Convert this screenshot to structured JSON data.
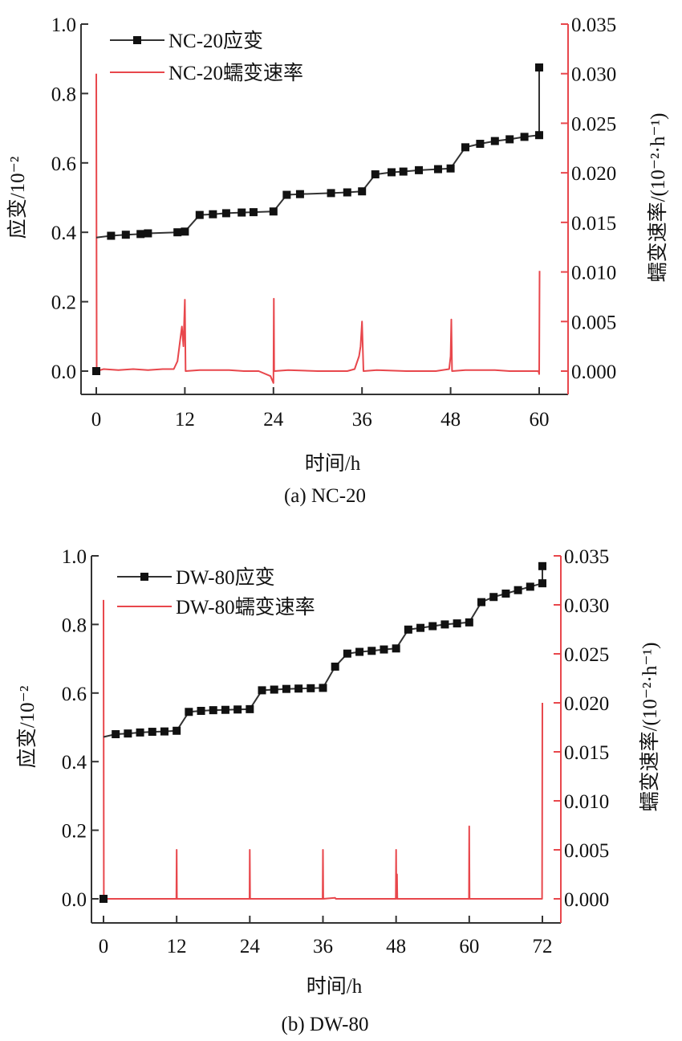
{
  "chart_data": [
    {
      "id": "a",
      "type": "line",
      "caption": "(a) NC-20",
      "xlabel": "时间/h",
      "ylabel_left": "应变/10⁻²",
      "ylabel_right": "蠕变速率/(10⁻²·h⁻¹)",
      "xlim": [
        -2,
        64
      ],
      "x_ticks": [
        "0",
        "12",
        "24",
        "36",
        "48",
        "60"
      ],
      "x_tick_values": [
        0,
        12,
        24,
        36,
        48,
        60
      ],
      "ylim_left": [
        -0.07,
        1.0
      ],
      "y_left_ticks": [
        "0.0",
        "0.2",
        "0.4",
        "0.6",
        "0.8",
        "1.0"
      ],
      "y_left_tick_values": [
        0.0,
        0.2,
        0.4,
        0.6,
        0.8,
        1.0
      ],
      "ylim_right": [
        -0.00245,
        0.035
      ],
      "y_right_ticks": [
        "0.000",
        "0.005",
        "0.010",
        "0.015",
        "0.020",
        "0.025",
        "0.030",
        "0.035"
      ],
      "y_right_tick_values": [
        0.0,
        0.005,
        0.01,
        0.015,
        0.02,
        0.025,
        0.03,
        0.035
      ],
      "legend_placement": "top-left",
      "series": [
        {
          "name": "NC-20应变",
          "axis": "left",
          "color": "#111111",
          "marker": "square",
          "points": [
            [
              0,
              0.0
            ],
            [
              0,
              0.385
            ],
            [
              2,
              0.39
            ],
            [
              4,
              0.393
            ],
            [
              6,
              0.395
            ],
            [
              7,
              0.397
            ],
            [
              11,
              0.4
            ],
            [
              12,
              0.402
            ],
            [
              14,
              0.45
            ],
            [
              15.8,
              0.452
            ],
            [
              17.6,
              0.455
            ],
            [
              19.7,
              0.457
            ],
            [
              21.3,
              0.458
            ],
            [
              24,
              0.46
            ],
            [
              25.8,
              0.508
            ],
            [
              27.6,
              0.51
            ],
            [
              31.8,
              0.513
            ],
            [
              34,
              0.515
            ],
            [
              36,
              0.518
            ],
            [
              37.8,
              0.567
            ],
            [
              40,
              0.573
            ],
            [
              41.6,
              0.575
            ],
            [
              43.7,
              0.579
            ],
            [
              46.3,
              0.582
            ],
            [
              48,
              0.584
            ],
            [
              50,
              0.645
            ],
            [
              52,
              0.655
            ],
            [
              54,
              0.663
            ],
            [
              56,
              0.668
            ],
            [
              58,
              0.675
            ],
            [
              60,
              0.68
            ],
            [
              60,
              0.875
            ]
          ]
        },
        {
          "name": "NC-20蠕变速率",
          "axis": "right",
          "color": "#e8474c",
          "points": [
            [
              0,
              0.03
            ],
            [
              0.05,
              0.0
            ],
            [
              1,
              0.0002
            ],
            [
              3,
              0.0001
            ],
            [
              5,
              0.0002
            ],
            [
              7,
              0.0001
            ],
            [
              9,
              0.0002
            ],
            [
              10.5,
              0.0002
            ],
            [
              11,
              0.001
            ],
            [
              11.6,
              0.0045
            ],
            [
              11.8,
              0.0025
            ],
            [
              12,
              0.0072
            ],
            [
              12.1,
              0.0
            ],
            [
              14,
              0.0001
            ],
            [
              18,
              0.0001
            ],
            [
              20,
              0.0
            ],
            [
              22,
              0.0
            ],
            [
              23.6,
              -0.0005
            ],
            [
              24,
              -0.0012
            ],
            [
              24.05,
              0.0073
            ],
            [
              24.1,
              0.0
            ],
            [
              26,
              0.0001
            ],
            [
              30,
              0.0
            ],
            [
              34,
              0.0
            ],
            [
              35,
              0.0002
            ],
            [
              35.6,
              0.0015
            ],
            [
              35.8,
              0.0025
            ],
            [
              36,
              0.005
            ],
            [
              36.2,
              0.0
            ],
            [
              38,
              0.0001
            ],
            [
              42,
              0.0
            ],
            [
              46,
              0.0
            ],
            [
              47.8,
              0.0002
            ],
            [
              48,
              0.0015
            ],
            [
              48.1,
              0.0052
            ],
            [
              48.2,
              0.0
            ],
            [
              50,
              0.0001
            ],
            [
              52,
              0.0001
            ],
            [
              54,
              0.0001
            ],
            [
              56,
              0.0
            ],
            [
              59.9,
              0.0
            ],
            [
              60,
              -0.0003
            ],
            [
              60.05,
              0.0101
            ]
          ]
        }
      ]
    },
    {
      "id": "b",
      "type": "line",
      "caption": "(b) DW-80",
      "xlabel": "时间/h",
      "ylabel_left": "应变/10⁻²",
      "ylabel_right": "蠕变速率/(10⁻²·h⁻¹)",
      "xlim": [
        -2,
        75
      ],
      "x_ticks": [
        "0",
        "12",
        "24",
        "36",
        "48",
        "60",
        "72"
      ],
      "x_tick_values": [
        0,
        12,
        24,
        36,
        48,
        60,
        72
      ],
      "ylim_left": [
        -0.07,
        1.0
      ],
      "y_left_ticks": [
        "0.0",
        "0.2",
        "0.4",
        "0.6",
        "0.8",
        "1.0"
      ],
      "y_left_tick_values": [
        0.0,
        0.2,
        0.4,
        0.6,
        0.8,
        1.0
      ],
      "ylim_right": [
        -0.00245,
        0.035
      ],
      "y_right_ticks": [
        "0.000",
        "0.005",
        "0.010",
        "0.015",
        "0.020",
        "0.025",
        "0.030",
        "0.035"
      ],
      "y_right_tick_values": [
        0.0,
        0.005,
        0.01,
        0.015,
        0.02,
        0.025,
        0.03,
        0.035
      ],
      "legend_placement": "top-left",
      "series": [
        {
          "name": "DW-80应变",
          "axis": "left",
          "color": "#111111",
          "marker": "square",
          "points": [
            [
              0,
              0.0
            ],
            [
              0,
              0.472
            ],
            [
              2,
              0.48
            ],
            [
              4,
              0.482
            ],
            [
              6,
              0.485
            ],
            [
              8,
              0.487
            ],
            [
              10,
              0.488
            ],
            [
              12,
              0.49
            ],
            [
              14,
              0.545
            ],
            [
              16,
              0.548
            ],
            [
              18,
              0.55
            ],
            [
              20,
              0.551
            ],
            [
              22,
              0.552
            ],
            [
              24,
              0.553
            ],
            [
              26,
              0.608
            ],
            [
              28,
              0.61
            ],
            [
              30,
              0.612
            ],
            [
              32,
              0.613
            ],
            [
              34,
              0.614
            ],
            [
              36,
              0.615
            ],
            [
              38,
              0.677
            ],
            [
              40,
              0.715
            ],
            [
              42,
              0.72
            ],
            [
              44,
              0.723
            ],
            [
              46,
              0.727
            ],
            [
              48,
              0.73
            ],
            [
              50,
              0.785
            ],
            [
              52,
              0.79
            ],
            [
              54,
              0.795
            ],
            [
              56,
              0.8
            ],
            [
              58,
              0.803
            ],
            [
              60,
              0.806
            ],
            [
              62,
              0.865
            ],
            [
              64,
              0.88
            ],
            [
              66,
              0.89
            ],
            [
              68,
              0.9
            ],
            [
              70,
              0.91
            ],
            [
              72,
              0.92
            ],
            [
              72,
              0.97
            ]
          ]
        },
        {
          "name": "DW-80蠕变速率",
          "axis": "right",
          "color": "#e8474c",
          "points": [
            [
              0,
              0.0305
            ],
            [
              0.05,
              0.0
            ],
            [
              11.95,
              0.0
            ],
            [
              12,
              0.005
            ],
            [
              12.05,
              0.0
            ],
            [
              23.95,
              0.0
            ],
            [
              24,
              0.005
            ],
            [
              24.05,
              0.0
            ],
            [
              35.95,
              0.0
            ],
            [
              36,
              0.005
            ],
            [
              36.05,
              0.0
            ],
            [
              38,
              0.0001
            ],
            [
              38.1,
              0.0
            ],
            [
              47.95,
              0.0
            ],
            [
              48,
              0.005
            ],
            [
              48.05,
              0.0
            ],
            [
              48.15,
              0.0025
            ],
            [
              48.2,
              0.0
            ],
            [
              59.95,
              0.0
            ],
            [
              60,
              0.0074
            ],
            [
              60.05,
              0.0
            ],
            [
              71.95,
              0.0
            ],
            [
              72,
              0.02
            ]
          ]
        }
      ]
    }
  ]
}
